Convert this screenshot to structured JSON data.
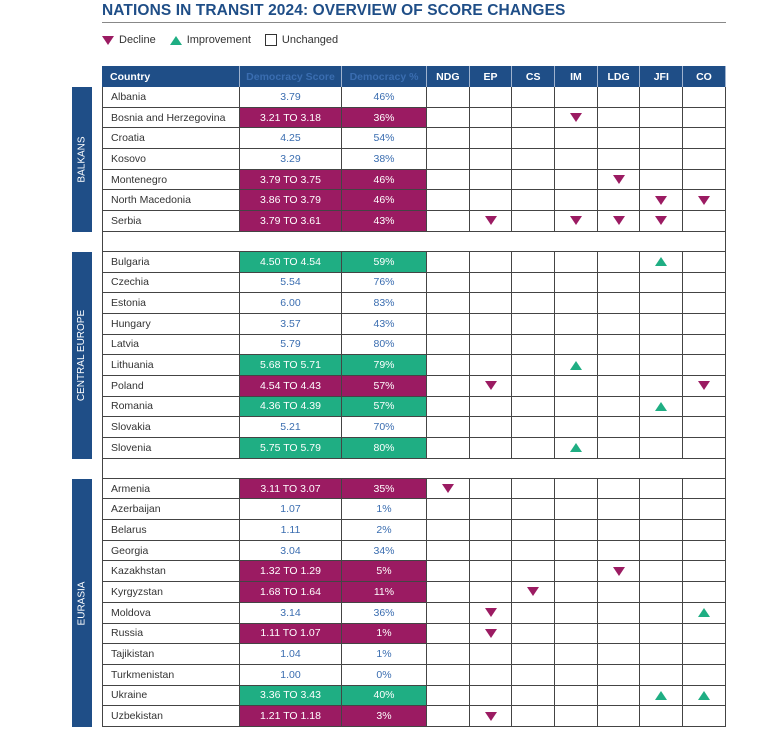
{
  "title": "NATIONS IN TRANSIT 2024: OVERVIEW OF SCORE CHANGES",
  "legend": {
    "decline": "Decline",
    "improvement": "Improvement",
    "unchanged": "Unchanged"
  },
  "colors": {
    "header": "#1f4e87",
    "decline": "#9b1b62",
    "improvement": "#1fae83"
  },
  "columns": [
    "Country",
    "Democracy Score",
    "Democracy %",
    "NDG",
    "EP",
    "CS",
    "IM",
    "LDG",
    "JFI",
    "CO"
  ],
  "groups": [
    {
      "name": "BALKANS",
      "rows": [
        {
          "country": "Albania",
          "score": "3.79",
          "pct": "46%",
          "change": "",
          "marks": [
            "",
            "",
            "",
            "",
            "",
            "",
            ""
          ]
        },
        {
          "country": "Bosnia and Herzegovina",
          "score": "3.21 TO 3.18",
          "pct": "36%",
          "change": "decline",
          "marks": [
            "",
            "",
            "",
            "d",
            "",
            "",
            ""
          ]
        },
        {
          "country": "Croatia",
          "score": "4.25",
          "pct": "54%",
          "change": "",
          "marks": [
            "",
            "",
            "",
            "",
            "",
            "",
            ""
          ]
        },
        {
          "country": "Kosovo",
          "score": "3.29",
          "pct": "38%",
          "change": "",
          "marks": [
            "",
            "",
            "",
            "",
            "",
            "",
            ""
          ]
        },
        {
          "country": "Montenegro",
          "score": "3.79 TO 3.75",
          "pct": "46%",
          "change": "decline",
          "marks": [
            "",
            "",
            "",
            "",
            "d",
            "",
            ""
          ]
        },
        {
          "country": "North Macedonia",
          "score": "3.86 TO 3.79",
          "pct": "46%",
          "change": "decline",
          "marks": [
            "",
            "",
            "",
            "",
            "",
            "d",
            "d"
          ]
        },
        {
          "country": "Serbia",
          "score": "3.79 TO 3.61",
          "pct": "43%",
          "change": "decline",
          "marks": [
            "",
            "d",
            "",
            "d",
            "d",
            "d",
            ""
          ]
        }
      ]
    },
    {
      "name": "CENTRAL EUROPE",
      "rows": [
        {
          "country": "Bulgaria",
          "score": "4.50 TO 4.54",
          "pct": "59%",
          "change": "improvement",
          "marks": [
            "",
            "",
            "",
            "",
            "",
            "i",
            ""
          ]
        },
        {
          "country": "Czechia",
          "score": "5.54",
          "pct": "76%",
          "change": "",
          "marks": [
            "",
            "",
            "",
            "",
            "",
            "",
            ""
          ]
        },
        {
          "country": "Estonia",
          "score": "6.00",
          "pct": "83%",
          "change": "",
          "marks": [
            "",
            "",
            "",
            "",
            "",
            "",
            ""
          ]
        },
        {
          "country": "Hungary",
          "score": "3.57",
          "pct": "43%",
          "change": "",
          "marks": [
            "",
            "",
            "",
            "",
            "",
            "",
            ""
          ]
        },
        {
          "country": "Latvia",
          "score": "5.79",
          "pct": "80%",
          "change": "",
          "marks": [
            "",
            "",
            "",
            "",
            "",
            "",
            ""
          ]
        },
        {
          "country": "Lithuania",
          "score": "5.68 TO 5.71",
          "pct": "79%",
          "change": "improvement",
          "marks": [
            "",
            "",
            "",
            "i",
            "",
            "",
            ""
          ]
        },
        {
          "country": "Poland",
          "score": "4.54 TO 4.43",
          "pct": "57%",
          "change": "decline",
          "marks": [
            "",
            "d",
            "",
            "",
            "",
            "",
            "d"
          ]
        },
        {
          "country": "Romania",
          "score": "4.36 TO 4.39",
          "pct": "57%",
          "change": "improvement",
          "marks": [
            "",
            "",
            "",
            "",
            "",
            "i",
            ""
          ]
        },
        {
          "country": "Slovakia",
          "score": "5.21",
          "pct": "70%",
          "change": "",
          "marks": [
            "",
            "",
            "",
            "",
            "",
            "",
            ""
          ]
        },
        {
          "country": "Slovenia",
          "score": "5.75 TO 5.79",
          "pct": "80%",
          "change": "improvement",
          "marks": [
            "",
            "",
            "",
            "i",
            "",
            "",
            ""
          ]
        }
      ]
    },
    {
      "name": "EURASIA",
      "rows": [
        {
          "country": "Armenia",
          "score": "3.11 TO 3.07",
          "pct": "35%",
          "change": "decline",
          "marks": [
            "d",
            "",
            "",
            "",
            "",
            "",
            ""
          ]
        },
        {
          "country": "Azerbaijan",
          "score": "1.07",
          "pct": "1%",
          "change": "",
          "marks": [
            "",
            "",
            "",
            "",
            "",
            "",
            ""
          ]
        },
        {
          "country": "Belarus",
          "score": "1.11",
          "pct": "2%",
          "change": "",
          "marks": [
            "",
            "",
            "",
            "",
            "",
            "",
            ""
          ]
        },
        {
          "country": "Georgia",
          "score": "3.04",
          "pct": "34%",
          "change": "",
          "marks": [
            "",
            "",
            "",
            "",
            "",
            "",
            ""
          ]
        },
        {
          "country": "Kazakhstan",
          "score": "1.32 TO 1.29",
          "pct": "5%",
          "change": "decline",
          "marks": [
            "",
            "",
            "",
            "",
            "d",
            "",
            ""
          ]
        },
        {
          "country": "Kyrgyzstan",
          "score": "1.68 TO 1.64",
          "pct": "11%",
          "change": "decline",
          "marks": [
            "",
            "",
            "d",
            "",
            "",
            "",
            ""
          ]
        },
        {
          "country": "Moldova",
          "score": "3.14",
          "pct": "36%",
          "change": "",
          "marks": [
            "",
            "d",
            "",
            "",
            "",
            "",
            "i"
          ]
        },
        {
          "country": "Russia",
          "score": "1.11 TO 1.07",
          "pct": "1%",
          "change": "decline",
          "marks": [
            "",
            "d",
            "",
            "",
            "",
            "",
            ""
          ]
        },
        {
          "country": "Tajikistan",
          "score": "1.04",
          "pct": "1%",
          "change": "",
          "marks": [
            "",
            "",
            "",
            "",
            "",
            "",
            ""
          ]
        },
        {
          "country": "Turkmenistan",
          "score": "1.00",
          "pct": "0%",
          "change": "",
          "marks": [
            "",
            "",
            "",
            "",
            "",
            "",
            ""
          ]
        },
        {
          "country": "Ukraine",
          "score": "3.36 TO 3.43",
          "pct": "40%",
          "change": "improvement",
          "marks": [
            "",
            "",
            "",
            "",
            "",
            "i",
            "i"
          ]
        },
        {
          "country": "Uzbekistan",
          "score": "1.21 TO 1.18",
          "pct": "3%",
          "change": "decline",
          "marks": [
            "",
            "d",
            "",
            "",
            "",
            "",
            ""
          ]
        }
      ]
    }
  ]
}
